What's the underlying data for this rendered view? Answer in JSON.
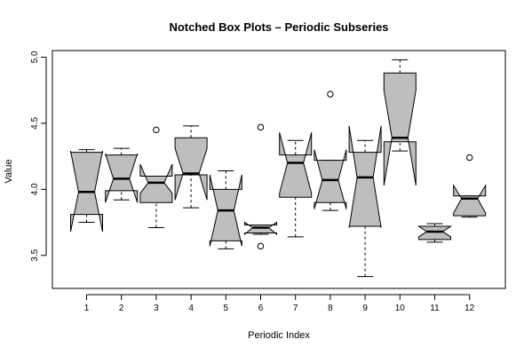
{
  "chart_data": {
    "type": "box",
    "title": "Notched Box Plots – Periodic Subseries",
    "xlabel": "Periodic Index",
    "ylabel": "Value",
    "ylim": [
      3.25,
      5.05
    ],
    "yticks": [
      3.5,
      4.0,
      4.5,
      5.0
    ],
    "ytick_labels": [
      "3.5",
      "4.0",
      "4.5",
      "5.0"
    ],
    "box_color": "#bebebe",
    "categories": [
      "1",
      "2",
      "3",
      "4",
      "5",
      "6",
      "7",
      "8",
      "9",
      "10",
      "11",
      "12"
    ],
    "boxes": [
      {
        "whislo": 3.75,
        "q1": 3.81,
        "med": 3.98,
        "q3": 4.28,
        "whishi": 4.3,
        "notch_lo": 3.68,
        "notch_hi": 4.29,
        "outliers": []
      },
      {
        "whislo": 3.92,
        "q1": 3.99,
        "med": 4.08,
        "q3": 4.26,
        "whishi": 4.31,
        "notch_lo": 3.9,
        "notch_hi": 4.27,
        "outliers": []
      },
      {
        "whislo": 3.71,
        "q1": 3.9,
        "med": 4.05,
        "q3": 4.1,
        "whishi": 4.1,
        "notch_lo": 3.97,
        "notch_hi": 4.19,
        "outliers": [
          4.45
        ]
      },
      {
        "whislo": 3.86,
        "q1": 4.11,
        "med": 4.12,
        "q3": 4.39,
        "whishi": 4.48,
        "notch_lo": 3.92,
        "notch_hi": 4.31,
        "outliers": []
      },
      {
        "whislo": 3.55,
        "q1": 3.61,
        "med": 3.84,
        "q3": 4.0,
        "whishi": 4.14,
        "notch_lo": 3.57,
        "notch_hi": 4.11,
        "outliers": []
      },
      {
        "whislo": 3.66,
        "q1": 3.67,
        "med": 3.71,
        "q3": 3.73,
        "whishi": 3.73,
        "notch_lo": 3.66,
        "notch_hi": 3.75,
        "outliers": [
          4.47,
          3.57
        ]
      },
      {
        "whislo": 3.64,
        "q1": 3.94,
        "med": 4.2,
        "q3": 4.26,
        "whishi": 4.37,
        "notch_lo": 3.97,
        "notch_hi": 4.43,
        "outliers": []
      },
      {
        "whislo": 3.84,
        "q1": 3.9,
        "med": 4.07,
        "q3": 4.22,
        "whishi": 4.22,
        "notch_lo": 3.85,
        "notch_hi": 4.3,
        "outliers": [
          4.72
        ]
      },
      {
        "whislo": 3.34,
        "q1": 3.72,
        "med": 4.09,
        "q3": 4.28,
        "whishi": 4.37,
        "notch_lo": 3.71,
        "notch_hi": 4.48,
        "outliers": []
      },
      {
        "whislo": 4.29,
        "q1": 4.36,
        "med": 4.39,
        "q3": 4.88,
        "whishi": 4.98,
        "notch_lo": 4.03,
        "notch_hi": 4.75,
        "outliers": []
      },
      {
        "whislo": 3.6,
        "q1": 3.62,
        "med": 3.68,
        "q3": 3.72,
        "whishi": 3.74,
        "notch_lo": 3.64,
        "notch_hi": 3.72,
        "outliers": []
      },
      {
        "whislo": 3.79,
        "q1": 3.8,
        "med": 3.93,
        "q3": 3.95,
        "whishi": 3.95,
        "notch_lo": 3.82,
        "notch_hi": 4.03,
        "outliers": [
          4.24
        ]
      }
    ]
  }
}
